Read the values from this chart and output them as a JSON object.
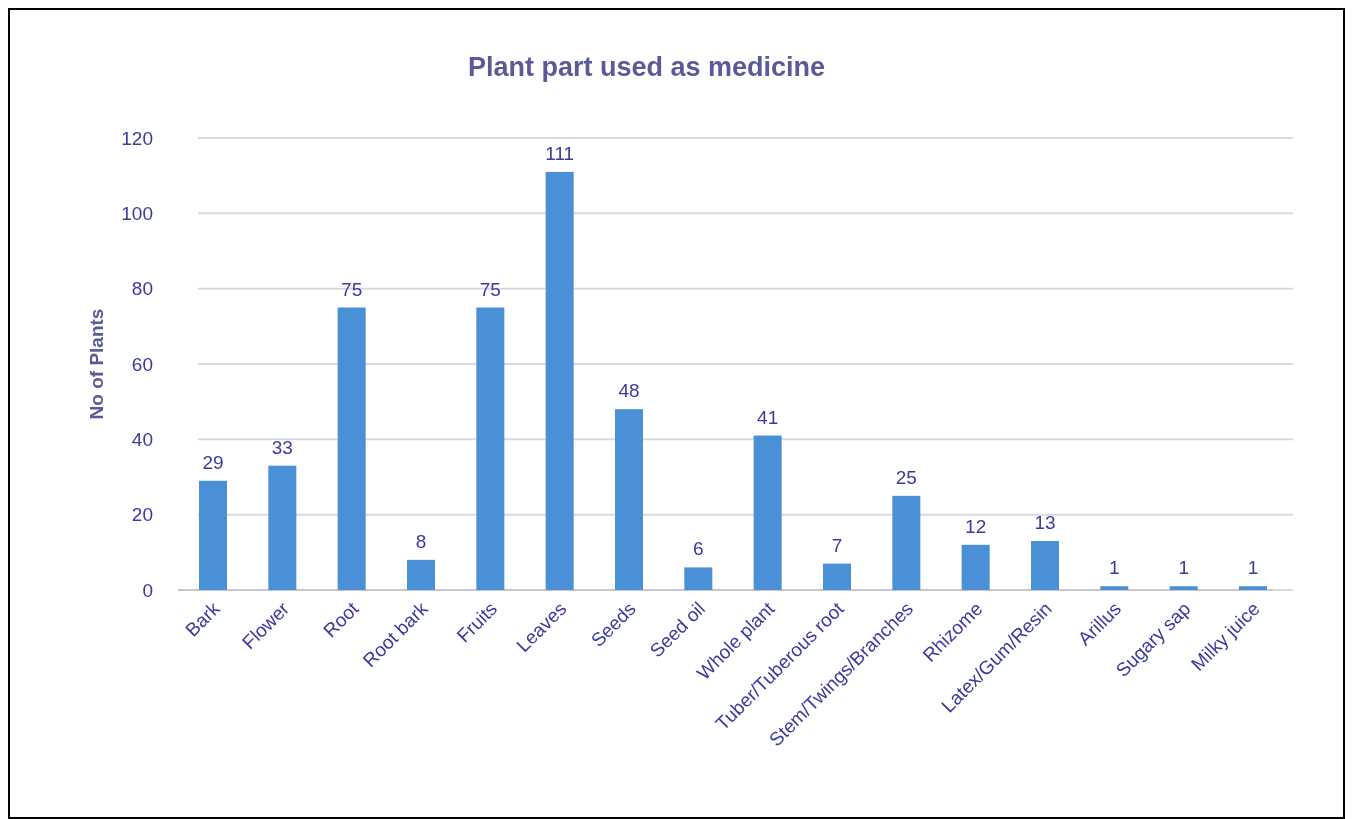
{
  "chart_data": {
    "type": "bar",
    "title": "Plant part used as medicine",
    "ylabel": "No of Plants",
    "categories": [
      "Bark",
      "Flower",
      "Root",
      "Root bark",
      "Fruits",
      "Leaves",
      "Seeds",
      "Seed oil",
      "Whole plant",
      "Tuber/Tuberous root",
      "Stem/Twings/Branches",
      "Rhizome",
      "Latex/Gum/Resin",
      "Arillus",
      "Sugary sap",
      "Milky juice"
    ],
    "values": [
      29,
      33,
      75,
      8,
      75,
      111,
      48,
      6,
      41,
      7,
      25,
      12,
      13,
      1,
      1,
      1
    ],
    "color": "#4a90d6",
    "ylim": [
      0,
      120
    ],
    "yticks": [
      0,
      20,
      40,
      60,
      80,
      100,
      120
    ],
    "grid": "y",
    "data_labels": true
  }
}
